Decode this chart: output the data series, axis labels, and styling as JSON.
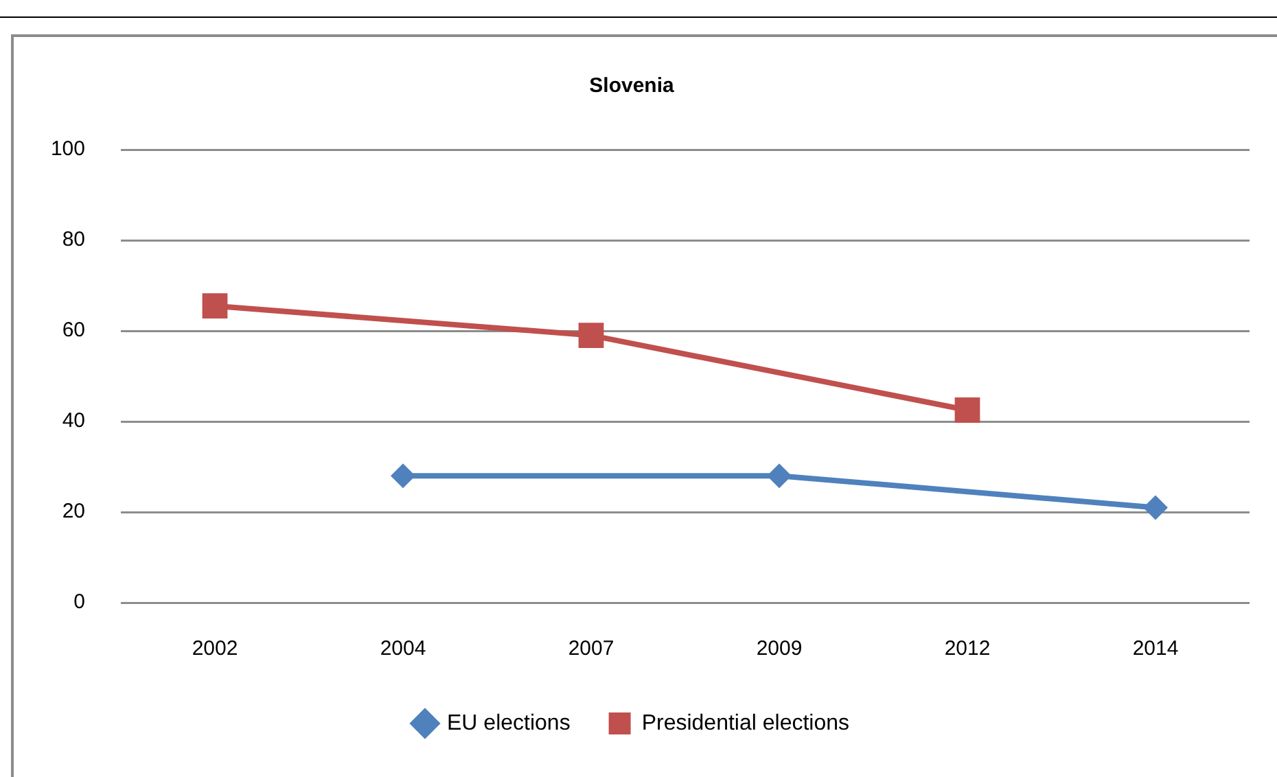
{
  "chart_data": {
    "type": "line",
    "title": "Slovenia",
    "categories": [
      "2002",
      "2004",
      "2007",
      "2009",
      "2012",
      "2014"
    ],
    "series": [
      {
        "name": "EU elections",
        "color": "#4f81bd",
        "marker": "diamond",
        "values": [
          null,
          28,
          null,
          28,
          null,
          21
        ]
      },
      {
        "name": "Presidential elections",
        "color": "#c0504d",
        "marker": "square",
        "values": [
          65.5,
          null,
          59,
          null,
          42.5,
          null
        ]
      }
    ],
    "ylim": [
      0,
      100
    ],
    "yticks": [
      0,
      20,
      40,
      60,
      80,
      100
    ],
    "grid": "y",
    "legend": "bottom"
  }
}
